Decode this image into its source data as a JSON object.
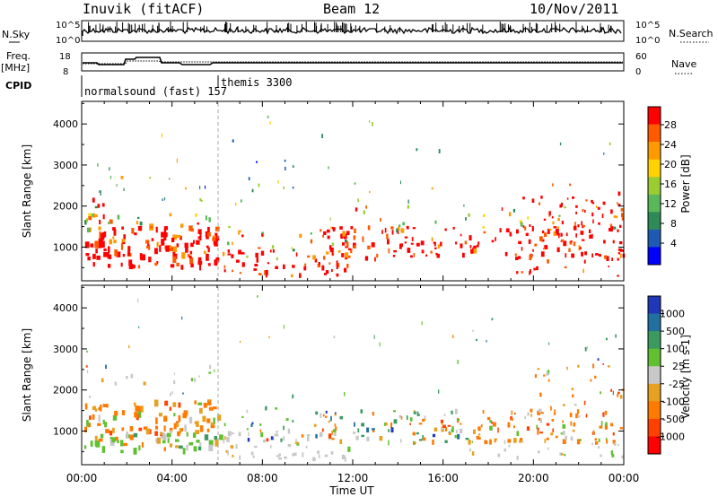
{
  "header": {
    "station": "Inuvik (fitACF)",
    "beam": "Beam 12",
    "date": "10/Nov/2011"
  },
  "top_panels": {
    "nsky_label": "N.Sky",
    "nsky_ticks": [
      "10^5",
      "10^0"
    ],
    "nsearch_label": "N.Search",
    "nsearch_ticks": [
      "10^5",
      "10^0"
    ],
    "freq_label": "Freq.",
    "freq_unit": "[MHz]",
    "freq_ticks": [
      "18",
      "8"
    ],
    "nave_label": "Nave",
    "nave_ticks": [
      "60",
      "0"
    ],
    "cpid_label": "CPID",
    "cpid_segments": [
      {
        "label": "normalsound (fast) 157",
        "start_hour": 0
      },
      {
        "label": "themis 3300",
        "start_hour": 6.1
      }
    ]
  },
  "chart_data": [
    {
      "type": "heatmap",
      "name": "power",
      "xlabel": "",
      "ylabel": "Slant Range [km]",
      "xlim": [
        0,
        24
      ],
      "ylim": [
        180,
        4550
      ],
      "y_ticks": [
        "1000",
        "2000",
        "3000",
        "4000"
      ],
      "colorbar": {
        "label": "Power [dB]",
        "ticks": [
          "4",
          "8",
          "12",
          "16",
          "20",
          "24",
          "28"
        ],
        "range": [
          0,
          30
        ],
        "colors": [
          "#0000ff",
          "#1e5ab4",
          "#2e8b57",
          "#5ab85a",
          "#9acd32",
          "#ffd200",
          "#ff9a00",
          "#ff5a00",
          "#ff0000"
        ]
      }
    },
    {
      "type": "heatmap",
      "name": "velocity",
      "xlabel": "Time UT",
      "ylabel": "Slant Range [km]",
      "xlim": [
        0,
        24
      ],
      "ylim": [
        180,
        4550
      ],
      "x_ticks": [
        "00:00",
        "04:00",
        "08:00",
        "12:00",
        "16:00",
        "20:00",
        "00:00"
      ],
      "y_ticks": [
        "1000",
        "2000",
        "3000",
        "4000"
      ],
      "colorbar": {
        "label": "Velocity [m s-1]",
        "ticks": [
          "1000",
          "500",
          "100",
          "25",
          "-25",
          "-100",
          "-500",
          "-1000"
        ],
        "colors": [
          "#2038b8",
          "#2070a0",
          "#3a9a60",
          "#60c030",
          "#c8c8c8",
          "#e8a020",
          "#ff7a00",
          "#ff4000",
          "#ff0000"
        ]
      }
    }
  ]
}
